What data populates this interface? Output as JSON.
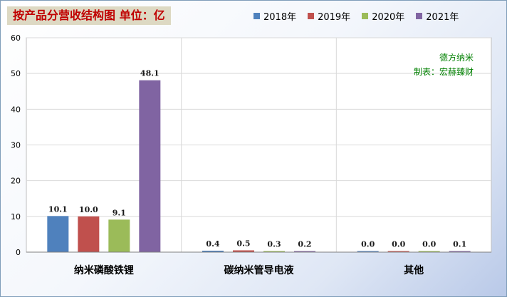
{
  "chart_data": {
    "type": "bar",
    "title": "按产品分营收结构图 单位：亿",
    "categories": [
      "纳米磷酸铁锂",
      "碳纳米管导电液",
      "其他"
    ],
    "series": [
      {
        "name": "2018年",
        "color": "#4f81bd",
        "values": [
          10.1,
          0.4,
          0.0
        ]
      },
      {
        "name": "2019年",
        "color": "#c0504d",
        "values": [
          10.0,
          0.5,
          0.0
        ]
      },
      {
        "name": "2020年",
        "color": "#9bbb59",
        "values": [
          9.1,
          0.3,
          0.0
        ]
      },
      {
        "name": "2021年",
        "color": "#8064a2",
        "values": [
          48.1,
          0.2,
          0.1
        ]
      }
    ],
    "ylim": [
      0,
      60
    ],
    "yticks": [
      "0",
      "10",
      "20",
      "30",
      "40",
      "50",
      "60"
    ],
    "grid": true,
    "legend": "top",
    "annotations": [
      "德方纳米",
      "制表：宏赫臻财"
    ]
  }
}
